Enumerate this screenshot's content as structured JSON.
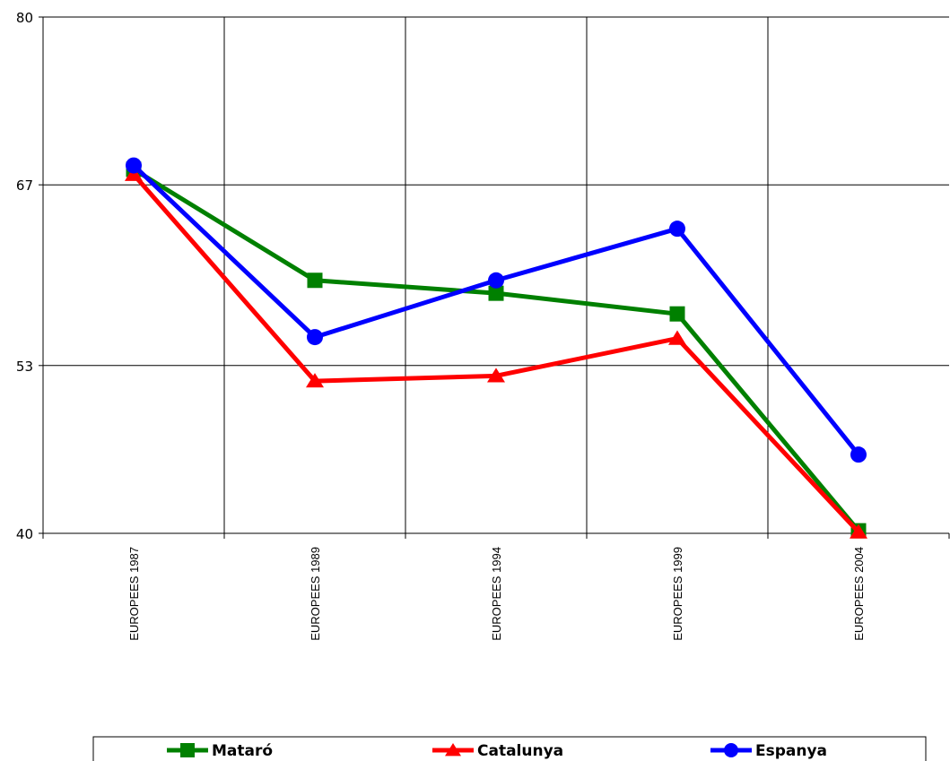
{
  "chart_data": {
    "type": "line",
    "categories": [
      "EUROPEES 1987",
      "EUROPEES 1989",
      "EUROPEES 1994",
      "EUROPEES 1999",
      "EUROPEES 2004"
    ],
    "yticks": [
      "80",
      "67",
      "53",
      "40"
    ],
    "ylim": [
      40,
      80
    ],
    "grid": true,
    "legend_position": "bottom",
    "series": [
      {
        "name": "Mataró",
        "color": "#008000",
        "marker": "square",
        "values": [
          68.2,
          59.6,
          58.6,
          57.0,
          40.2
        ]
      },
      {
        "name": "Catalunya",
        "color": "#ff0000",
        "marker": "triangle",
        "values": [
          67.8,
          51.8,
          52.2,
          55.1,
          40.1
        ]
      },
      {
        "name": "Espanya",
        "color": "#0000ff",
        "marker": "circle",
        "values": [
          68.5,
          55.2,
          59.6,
          63.6,
          46.1
        ]
      }
    ]
  }
}
